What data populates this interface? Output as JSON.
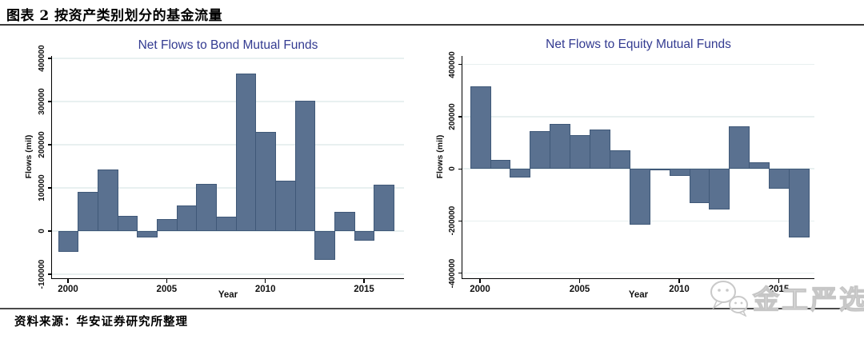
{
  "header": {
    "title": "图表 2 按资产类别划分的基金流量"
  },
  "footer": {
    "source": "资料来源：华安证券研究所整理"
  },
  "watermark": {
    "text": "金工严选",
    "icon": "wechat-chat-bubbles-icon"
  },
  "colors": {
    "bar_fill": "#5a7190",
    "bar_border": "#3f5878",
    "chart_title": "#333b91",
    "gridline": "#e8f0f0",
    "axis": "#000000"
  },
  "chart_data": [
    {
      "type": "bar",
      "title": "Net Flows to Bond Mutual Funds",
      "xlabel": "Year",
      "ylabel": "Flows (mil)",
      "categories": [
        2000,
        2001,
        2002,
        2003,
        2004,
        2005,
        2006,
        2007,
        2008,
        2009,
        2010,
        2011,
        2012,
        2013,
        2014,
        2015,
        2016
      ],
      "values": [
        -48000,
        90000,
        142000,
        35000,
        -15000,
        28000,
        60000,
        110000,
        33000,
        365000,
        229000,
        117000,
        301000,
        -66000,
        44000,
        -23000,
        107000
      ],
      "ylim": [
        -100000,
        400000
      ],
      "yticks": [
        400000,
        300000,
        200000,
        100000,
        0,
        -100000
      ],
      "xticks": [
        2000,
        2005,
        2010,
        2015
      ],
      "grid": true,
      "legend": "none"
    },
    {
      "type": "bar",
      "title": "Net Flows to Equity Mutual Funds",
      "xlabel": "Year",
      "ylabel": "Flows (mil)",
      "categories": [
        2000,
        2001,
        2002,
        2003,
        2004,
        2005,
        2006,
        2007,
        2008,
        2009,
        2010,
        2011,
        2012,
        2013,
        2014,
        2015,
        2016
      ],
      "values": [
        316000,
        34000,
        -33000,
        146000,
        173000,
        130000,
        150000,
        70000,
        -214000,
        -5000,
        -27000,
        -130000,
        -156000,
        163000,
        25000,
        -75000,
        -263000
      ],
      "ylim": [
        -400000,
        400000
      ],
      "yticks": [
        400000,
        200000,
        0,
        -200000,
        -400000
      ],
      "xticks": [
        2000,
        2005,
        2010,
        2015
      ],
      "grid": true,
      "legend": "none"
    }
  ]
}
